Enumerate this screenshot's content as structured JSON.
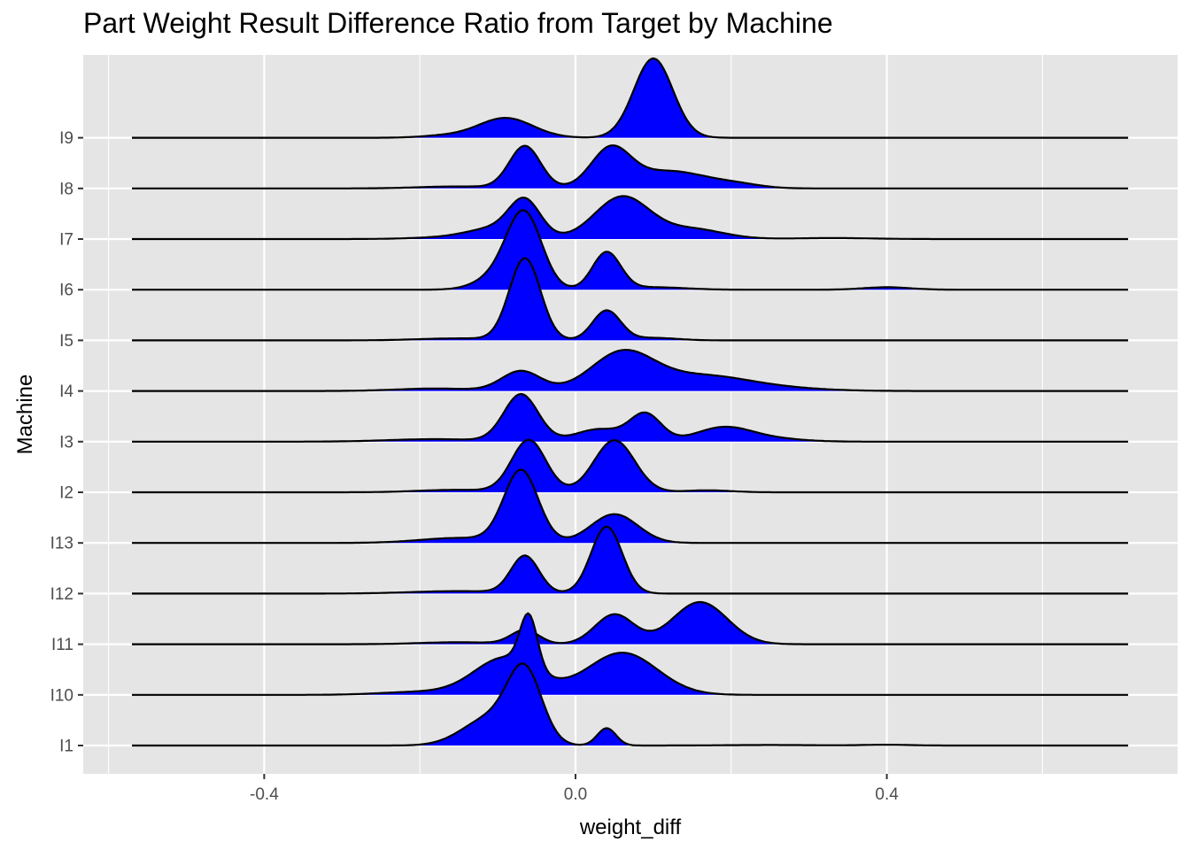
{
  "chart_data": {
    "type": "ridgeline",
    "title": "Part Weight Result Difference Ratio from Target by Machine",
    "xlabel": "weight_diff",
    "ylabel": "Machine",
    "xlim": [
      -0.6,
      0.75
    ],
    "x_ticks": [
      -0.4,
      0.0,
      0.4
    ],
    "x_tick_labels": [
      "-0.4",
      "0.0",
      "0.4"
    ],
    "grid": true,
    "fill_color": "#0000ff",
    "line_color": "#000000",
    "panel_color": "#e5e5e5",
    "grid_color": "#ffffff",
    "density_range": [
      -0.57,
      0.71
    ],
    "categories": [
      "I1",
      "I10",
      "I11",
      "I12",
      "I13",
      "I2",
      "I3",
      "I4",
      "I5",
      "I6",
      "I7",
      "I8",
      "I9"
    ],
    "series": [
      {
        "name": "I1",
        "components": [
          [
            -0.065,
            0.022,
            1.4
          ],
          [
            -0.11,
            0.035,
            0.55
          ],
          [
            0.04,
            0.012,
            0.35
          ],
          [
            0.4,
            0.03,
            0.015
          ],
          [
            0.25,
            0.06,
            0.01
          ]
        ]
      },
      {
        "name": "I10",
        "components": [
          [
            -0.06,
            0.011,
            1.05
          ],
          [
            -0.09,
            0.04,
            0.75
          ],
          [
            0.06,
            0.045,
            0.85
          ],
          [
            -0.2,
            0.05,
            0.06
          ]
        ]
      },
      {
        "name": "I11",
        "components": [
          [
            -0.065,
            0.018,
            0.28
          ],
          [
            0.05,
            0.025,
            0.6
          ],
          [
            0.16,
            0.035,
            0.85
          ],
          [
            -0.15,
            0.05,
            0.04
          ]
        ]
      },
      {
        "name": "I12",
        "components": [
          [
            -0.065,
            0.018,
            0.75
          ],
          [
            0.04,
            0.02,
            1.35
          ],
          [
            -0.15,
            0.06,
            0.05
          ]
        ]
      },
      {
        "name": "I13",
        "components": [
          [
            -0.07,
            0.022,
            1.45
          ],
          [
            0.05,
            0.03,
            0.58
          ],
          [
            -0.15,
            0.05,
            0.1
          ]
        ]
      },
      {
        "name": "I2",
        "components": [
          [
            -0.06,
            0.022,
            1.05
          ],
          [
            0.05,
            0.026,
            1.05
          ],
          [
            0.17,
            0.03,
            0.04
          ],
          [
            -0.15,
            0.05,
            0.05
          ]
        ]
      },
      {
        "name": "I3",
        "components": [
          [
            -0.07,
            0.022,
            0.95
          ],
          [
            0.03,
            0.03,
            0.25
          ],
          [
            0.09,
            0.02,
            0.55
          ],
          [
            0.19,
            0.035,
            0.28
          ],
          [
            0.25,
            0.04,
            0.06
          ],
          [
            -0.18,
            0.06,
            0.05
          ]
        ]
      },
      {
        "name": "I4",
        "components": [
          [
            -0.07,
            0.025,
            0.4
          ],
          [
            0.06,
            0.04,
            0.75
          ],
          [
            0.16,
            0.06,
            0.3
          ],
          [
            -0.18,
            0.05,
            0.05
          ],
          [
            0.26,
            0.06,
            0.05
          ]
        ]
      },
      {
        "name": "I5",
        "components": [
          [
            -0.065,
            0.02,
            1.65
          ],
          [
            0.04,
            0.018,
            0.6
          ],
          [
            0.1,
            0.03,
            0.05
          ],
          [
            -0.15,
            0.05,
            0.04
          ]
        ]
      },
      {
        "name": "I6",
        "components": [
          [
            -0.065,
            0.022,
            1.35
          ],
          [
            -0.09,
            0.03,
            0.35
          ],
          [
            0.04,
            0.018,
            0.75
          ],
          [
            0.1,
            0.04,
            0.05
          ],
          [
            0.4,
            0.03,
            0.05
          ]
        ]
      },
      {
        "name": "I7",
        "components": [
          [
            -0.065,
            0.02,
            0.7
          ],
          [
            -0.1,
            0.035,
            0.2
          ],
          [
            0.06,
            0.035,
            0.85
          ],
          [
            0.15,
            0.04,
            0.2
          ],
          [
            -0.15,
            0.05,
            0.04
          ],
          [
            0.33,
            0.05,
            0.02
          ]
        ]
      },
      {
        "name": "I8",
        "components": [
          [
            -0.065,
            0.02,
            0.85
          ],
          [
            0.045,
            0.025,
            0.75
          ],
          [
            0.12,
            0.05,
            0.35
          ],
          [
            0.21,
            0.03,
            0.06
          ],
          [
            -0.15,
            0.05,
            0.04
          ]
        ]
      },
      {
        "name": "I9",
        "components": [
          [
            0.1,
            0.025,
            1.6
          ],
          [
            -0.09,
            0.035,
            0.4
          ],
          [
            -0.17,
            0.03,
            0.04
          ]
        ]
      }
    ]
  }
}
